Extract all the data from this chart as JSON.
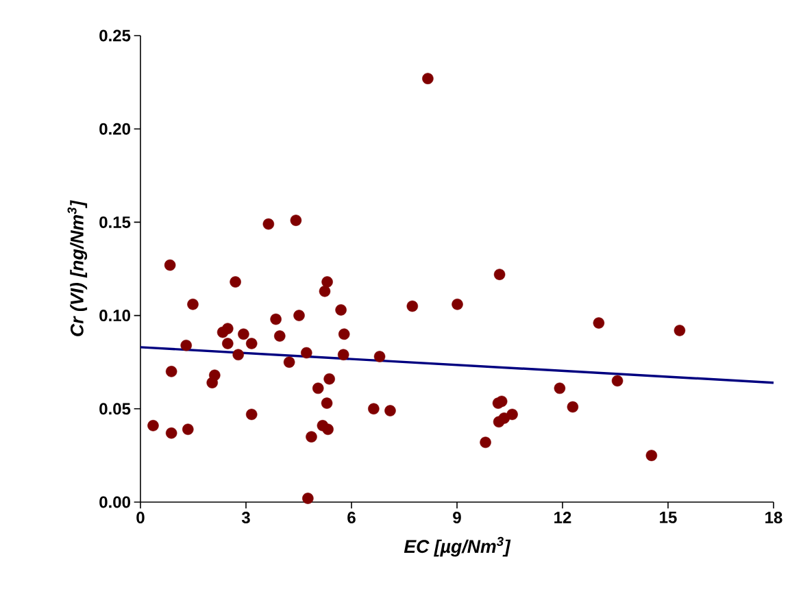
{
  "chart_data": {
    "type": "scatter",
    "xlabel": "EC [µg/Nm$^{3}$]",
    "ylabel": "Cr (VI)  [ng/Nm$^{3}$]",
    "xlim": [
      0,
      18
    ],
    "ylim": [
      0,
      0.25
    ],
    "xticks": [
      0,
      3,
      6,
      9,
      12,
      15,
      18
    ],
    "yticks": [
      {
        "value": 0,
        "label": "0.00"
      },
      {
        "value": 0.05,
        "label": "0.05"
      },
      {
        "value": 0.1,
        "label": "0.10"
      },
      {
        "value": 0.15,
        "label": "0.15"
      },
      {
        "value": 0.2,
        "label": "0.20"
      },
      {
        "value": 0.25,
        "label": "0.25"
      }
    ],
    "grid": false,
    "series": [
      {
        "type": "scatter",
        "marker": "circle",
        "color": "#800000",
        "x": [
          0.36,
          0.84,
          0.88,
          0.88,
          1.3,
          1.35,
          1.49,
          2.04,
          2.11,
          2.34,
          2.48,
          2.48,
          2.7,
          2.78,
          2.93,
          3.16,
          3.16,
          3.64,
          3.85,
          3.96,
          4.23,
          4.42,
          4.51,
          4.72,
          4.76,
          4.86,
          5.05,
          5.18,
          5.24,
          5.31,
          5.3,
          5.33,
          5.37,
          5.7,
          5.79,
          5.77,
          6.63,
          6.8,
          7.1,
          7.73,
          8.17,
          9.01,
          9.81,
          10.17,
          10.21,
          10.19,
          10.27,
          10.34,
          10.57,
          11.92,
          12.29,
          13.03,
          13.56,
          14.53,
          15.33
        ],
        "values": [
          0.041,
          0.127,
          0.07,
          0.037,
          0.084,
          0.039,
          0.106,
          0.064,
          0.068,
          0.091,
          0.093,
          0.085,
          0.118,
          0.079,
          0.09,
          0.085,
          0.047,
          0.149,
          0.098,
          0.089,
          0.075,
          0.151,
          0.1,
          0.08,
          0.002,
          0.035,
          0.061,
          0.041,
          0.113,
          0.118,
          0.053,
          0.039,
          0.066,
          0.103,
          0.09,
          0.079,
          0.05,
          0.078,
          0.049,
          0.105,
          0.227,
          0.106,
          0.032,
          0.053,
          0.122,
          0.043,
          0.054,
          0.045,
          0.047,
          0.061,
          0.051,
          0.096,
          0.065,
          0.025,
          0.092
        ]
      },
      {
        "type": "line",
        "color": "#000080",
        "line_style": "solid",
        "marker": "none",
        "x": [
          0,
          18
        ],
        "values": [
          0.083,
          0.064
        ]
      }
    ]
  }
}
